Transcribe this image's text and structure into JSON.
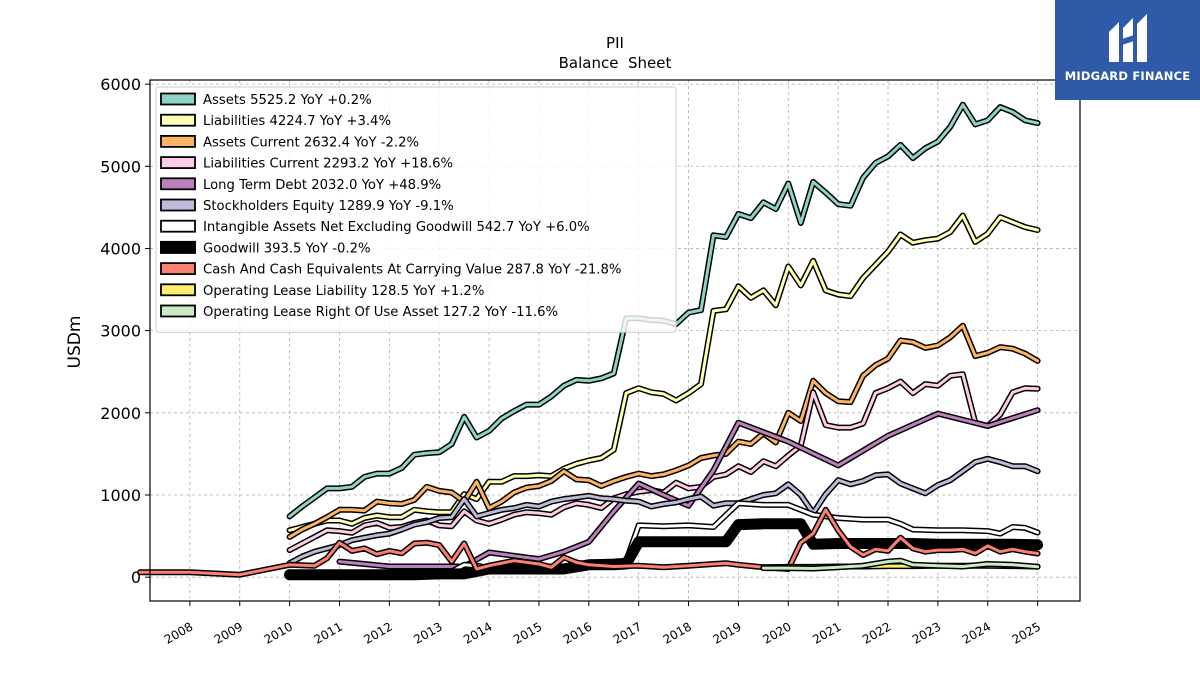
{
  "chart_data": {
    "type": "line",
    "title": "PII",
    "subtitle": "Balance  Sheet",
    "xlabel": "",
    "ylabel": "USDm",
    "xlim": [
      2007.2,
      2025.85
    ],
    "ylim": [
      -290,
      6050
    ],
    "yticks": [
      0,
      1000,
      2000,
      3000,
      4000,
      5000,
      6000
    ],
    "xticks": [
      "2008",
      "2009",
      "2010",
      "2011",
      "2012",
      "2013",
      "2014",
      "2015",
      "2016",
      "2017",
      "2018",
      "2019",
      "2020",
      "2021",
      "2022",
      "2023",
      "2024",
      "2025"
    ],
    "grid": true,
    "legend_position": "top-left",
    "series": [
      {
        "name": "Assets",
        "legend": "Assets  5525.2 YoY +0.2%",
        "color": "#8dd3c7",
        "x": [
          2010.0,
          2010.25,
          2010.5,
          2010.75,
          2011.0,
          2011.25,
          2011.5,
          2011.75,
          2012.0,
          2012.25,
          2012.5,
          2012.75,
          2013.0,
          2013.25,
          2013.5,
          2013.75,
          2014.0,
          2014.25,
          2014.5,
          2014.75,
          2015.0,
          2015.25,
          2015.5,
          2015.75,
          2016.0,
          2016.25,
          2016.5,
          2016.75,
          2017.0,
          2017.25,
          2017.5,
          2017.75,
          2018.0,
          2018.25,
          2018.5,
          2018.75,
          2019.0,
          2019.25,
          2019.5,
          2019.75,
          2020.0,
          2020.25,
          2020.5,
          2020.75,
          2021.0,
          2021.25,
          2021.5,
          2021.75,
          2022.0,
          2022.25,
          2022.5,
          2022.75,
          2023.0,
          2023.25,
          2023.5,
          2023.75,
          2024.0,
          2024.25,
          2024.5,
          2024.75,
          2025.0
        ],
        "y": [
          740,
          860,
          970,
          1080,
          1080,
          1100,
          1220,
          1260,
          1260,
          1330,
          1490,
          1510,
          1520,
          1620,
          1950,
          1700,
          1780,
          1930,
          2020,
          2100,
          2100,
          2200,
          2330,
          2400,
          2390,
          2420,
          2480,
          3150,
          3150,
          3130,
          3120,
          3080,
          3220,
          3250,
          4160,
          4140,
          4420,
          4370,
          4560,
          4480,
          4790,
          4310,
          4810,
          4680,
          4540,
          4520,
          4860,
          5040,
          5120,
          5260,
          5100,
          5220,
          5300,
          5480,
          5750,
          5510,
          5560,
          5720,
          5660,
          5560,
          5525
        ]
      },
      {
        "name": "Liabilities",
        "legend": "Liabilities  4224.7 YoY +3.4%",
        "color": "#ffffb3",
        "x": [
          2010.0,
          2010.25,
          2010.5,
          2010.75,
          2011.0,
          2011.25,
          2011.5,
          2011.75,
          2012.0,
          2012.25,
          2012.5,
          2012.75,
          2013.0,
          2013.25,
          2013.5,
          2013.75,
          2014.0,
          2014.25,
          2014.5,
          2014.75,
          2015.0,
          2015.25,
          2015.5,
          2015.75,
          2016.0,
          2016.25,
          2016.5,
          2016.75,
          2017.0,
          2017.25,
          2017.5,
          2017.75,
          2018.0,
          2018.25,
          2018.5,
          2018.75,
          2019.0,
          2019.25,
          2019.5,
          2019.75,
          2020.0,
          2020.25,
          2020.5,
          2020.75,
          2021.0,
          2021.25,
          2021.5,
          2021.75,
          2022.0,
          2022.25,
          2022.5,
          2022.75,
          2023.0,
          2023.25,
          2023.5,
          2023.75,
          2024.0,
          2024.25,
          2024.5,
          2024.75,
          2025.0
        ],
        "y": [
          570,
          610,
          650,
          690,
          690,
          650,
          720,
          750,
          730,
          730,
          820,
          800,
          790,
          790,
          1010,
          950,
          1160,
          1160,
          1230,
          1230,
          1240,
          1230,
          1320,
          1380,
          1420,
          1450,
          1550,
          2240,
          2300,
          2250,
          2230,
          2150,
          2240,
          2350,
          3240,
          3260,
          3540,
          3400,
          3490,
          3310,
          3780,
          3550,
          3850,
          3490,
          3440,
          3420,
          3640,
          3800,
          3960,
          4170,
          4070,
          4100,
          4120,
          4200,
          4400,
          4080,
          4180,
          4380,
          4320,
          4260,
          4225
        ]
      },
      {
        "name": "Assets Current",
        "legend": "Assets Current  2632.4 YoY -2.2%",
        "color": "#fdb462",
        "x": [
          2010.0,
          2010.25,
          2010.5,
          2010.75,
          2011.0,
          2011.25,
          2011.5,
          2011.75,
          2012.0,
          2012.25,
          2012.5,
          2012.75,
          2013.0,
          2013.25,
          2013.5,
          2013.75,
          2014.0,
          2014.25,
          2014.5,
          2014.75,
          2015.0,
          2015.25,
          2015.5,
          2015.75,
          2016.0,
          2016.25,
          2016.5,
          2016.75,
          2017.0,
          2017.25,
          2017.5,
          2017.75,
          2018.0,
          2018.25,
          2018.5,
          2018.75,
          2019.0,
          2019.25,
          2019.5,
          2019.75,
          2020.0,
          2020.25,
          2020.5,
          2020.75,
          2021.0,
          2021.25,
          2021.5,
          2021.75,
          2022.0,
          2022.25,
          2022.5,
          2022.75,
          2023.0,
          2023.25,
          2023.5,
          2023.75,
          2024.0,
          2024.25,
          2024.5,
          2024.75,
          2025.0
        ],
        "y": [
          490,
          580,
          650,
          730,
          820,
          820,
          810,
          920,
          900,
          890,
          940,
          1100,
          1050,
          1030,
          920,
          1160,
          840,
          920,
          1030,
          1090,
          1110,
          1170,
          1290,
          1190,
          1180,
          1110,
          1170,
          1220,
          1260,
          1230,
          1250,
          1300,
          1360,
          1450,
          1480,
          1500,
          1650,
          1620,
          1750,
          1640,
          2000,
          1900,
          2390,
          2240,
          2140,
          2130,
          2450,
          2580,
          2660,
          2880,
          2860,
          2790,
          2820,
          2920,
          3060,
          2690,
          2730,
          2800,
          2780,
          2720,
          2632
        ]
      },
      {
        "name": "Liabilities Current",
        "legend": "Liabilities Current  2293.2 YoY +18.6%",
        "color": "#fccde5",
        "x": [
          2010.0,
          2010.25,
          2010.5,
          2010.75,
          2011.0,
          2011.25,
          2011.5,
          2011.75,
          2012.0,
          2012.25,
          2012.5,
          2012.75,
          2013.0,
          2013.25,
          2013.5,
          2013.75,
          2014.0,
          2014.25,
          2014.5,
          2014.75,
          2015.0,
          2015.25,
          2015.5,
          2015.75,
          2016.0,
          2016.25,
          2016.5,
          2016.75,
          2017.0,
          2017.25,
          2017.5,
          2017.75,
          2018.0,
          2018.25,
          2018.5,
          2018.75,
          2019.0,
          2019.25,
          2019.5,
          2019.75,
          2020.0,
          2020.25,
          2020.5,
          2020.75,
          2021.0,
          2021.25,
          2021.5,
          2021.75,
          2022.0,
          2022.25,
          2022.5,
          2022.75,
          2023.0,
          2023.25,
          2023.5,
          2023.75,
          2024.0,
          2024.25,
          2024.5,
          2024.75,
          2025.0
        ],
        "y": [
          330,
          410,
          490,
          570,
          560,
          540,
          630,
          660,
          600,
          610,
          660,
          690,
          630,
          620,
          800,
          690,
          650,
          700,
          760,
          790,
          780,
          760,
          850,
          900,
          880,
          840,
          960,
          1010,
          1040,
          1060,
          1030,
          1150,
          1080,
          1100,
          1220,
          1250,
          1350,
          1280,
          1410,
          1350,
          1480,
          1600,
          2250,
          1850,
          1820,
          1820,
          1870,
          2240,
          2300,
          2380,
          2240,
          2350,
          2330,
          2450,
          2470,
          1880,
          1840,
          1980,
          2250,
          2300,
          2293
        ]
      },
      {
        "name": "Long Term Debt",
        "legend": "Long Term Debt  2032.0 YoY +48.9%",
        "color": "#bc80bd",
        "x": [
          2011.0,
          2011.5,
          2012.0,
          2012.5,
          2013.0,
          2013.5,
          2014.0,
          2014.5,
          2015.0,
          2015.5,
          2016.0,
          2016.5,
          2017.0,
          2017.5,
          2018.0,
          2018.5,
          2019.0,
          2020.0,
          2021.0,
          2022.0,
          2023.0,
          2024.0,
          2025.0
        ],
        "y": [
          190,
          160,
          130,
          130,
          130,
          130,
          300,
          260,
          220,
          310,
          430,
          800,
          1140,
          1000,
          870,
          1300,
          1880,
          1650,
          1360,
          1720,
          1990,
          1840,
          2032
        ]
      },
      {
        "name": "Stockholders Equity",
        "legend": "Stockholders Equity  1289.9 YoY -9.1%",
        "color": "#bebada",
        "x": [
          2010.0,
          2010.25,
          2010.5,
          2010.75,
          2011.0,
          2011.25,
          2011.5,
          2011.75,
          2012.0,
          2012.25,
          2012.5,
          2012.75,
          2013.0,
          2013.25,
          2013.5,
          2013.75,
          2014.0,
          2014.25,
          2014.5,
          2014.75,
          2015.0,
          2015.25,
          2015.5,
          2015.75,
          2016.0,
          2016.25,
          2016.5,
          2016.75,
          2017.0,
          2017.25,
          2017.5,
          2017.75,
          2018.0,
          2018.25,
          2018.5,
          2018.75,
          2019.0,
          2019.25,
          2019.5,
          2019.75,
          2020.0,
          2020.25,
          2020.5,
          2020.75,
          2021.0,
          2021.25,
          2021.5,
          2021.75,
          2022.0,
          2022.25,
          2022.5,
          2022.75,
          2023.0,
          2023.25,
          2023.5,
          2023.75,
          2024.0,
          2024.25,
          2024.5,
          2024.75,
          2025.0
        ],
        "y": [
          170,
          250,
          310,
          350,
          390,
          450,
          480,
          510,
          530,
          580,
          640,
          670,
          720,
          730,
          950,
          740,
          780,
          820,
          840,
          880,
          860,
          920,
          950,
          970,
          990,
          960,
          950,
          930,
          920,
          860,
          890,
          910,
          950,
          980,
          870,
          900,
          900,
          950,
          1000,
          1020,
          1130,
          1000,
          780,
          1010,
          1180,
          1130,
          1170,
          1240,
          1250,
          1140,
          1080,
          1020,
          1120,
          1180,
          1290,
          1400,
          1440,
          1400,
          1350,
          1350,
          1290
        ]
      },
      {
        "name": "Intangible Assets Net Excluding Goodwill",
        "legend": "Intangible Assets Net Excluding Goodwill  542.7 YoY +6.0%",
        "color": "#ffffff",
        "x": [
          2010.0,
          2010.5,
          2011.0,
          2011.5,
          2012.0,
          2012.5,
          2013.0,
          2013.25,
          2013.5,
          2013.75,
          2014.0,
          2014.5,
          2015.0,
          2015.5,
          2016.0,
          2016.5,
          2016.75,
          2017.0,
          2017.5,
          2018.0,
          2018.5,
          2019.0,
          2019.5,
          2020.0,
          2020.5,
          2021.0,
          2021.5,
          2022.0,
          2022.25,
          2022.5,
          2023.0,
          2023.5,
          2024.0,
          2024.25,
          2024.5,
          2024.75,
          2025.0
        ],
        "y": [
          20,
          20,
          30,
          30,
          30,
          30,
          70,
          70,
          150,
          140,
          110,
          120,
          120,
          130,
          180,
          190,
          200,
          630,
          620,
          630,
          610,
          900,
          880,
          880,
          760,
          720,
          700,
          700,
          650,
          580,
          570,
          570,
          560,
          530,
          610,
          600,
          543
        ]
      },
      {
        "name": "Goodwill",
        "legend": "Goodwill  393.5 YoY -0.2%",
        "color": "#000000",
        "x": [
          2010.0,
          2010.5,
          2011.0,
          2011.5,
          2012.0,
          2012.5,
          2013.0,
          2013.5,
          2014.0,
          2014.5,
          2015.0,
          2015.5,
          2016.0,
          2016.5,
          2016.75,
          2017.0,
          2017.5,
          2018.0,
          2018.5,
          2018.75,
          2019.0,
          2019.5,
          2020.0,
          2020.25,
          2020.5,
          2021.0,
          2021.5,
          2022.0,
          2022.5,
          2023.0,
          2023.5,
          2024.0,
          2024.5,
          2025.0
        ],
        "y": [
          30,
          30,
          30,
          30,
          30,
          30,
          40,
          40,
          100,
          100,
          100,
          100,
          150,
          150,
          160,
          430,
          430,
          430,
          430,
          430,
          640,
          650,
          650,
          650,
          400,
          410,
          410,
          410,
          410,
          400,
          400,
          400,
          400,
          394
        ]
      },
      {
        "name": "Cash And Cash Equivalents At Carrying Value",
        "legend": "Cash And Cash Equivalents At Carrying Value  287.8 YoY -21.8%",
        "color": "#fb8072",
        "x": [
          2007.0,
          2008.0,
          2009.0,
          2010.0,
          2010.5,
          2010.75,
          2011.0,
          2011.25,
          2011.5,
          2011.75,
          2012.0,
          2012.25,
          2012.5,
          2012.75,
          2013.0,
          2013.25,
          2013.5,
          2013.75,
          2014.0,
          2014.5,
          2015.0,
          2015.25,
          2015.5,
          2015.75,
          2016.0,
          2016.5,
          2017.0,
          2017.5,
          2018.0,
          2018.5,
          2018.75,
          2019.0,
          2019.5,
          2020.0,
          2020.25,
          2020.5,
          2020.75,
          2021.0,
          2021.25,
          2021.5,
          2021.75,
          2022.0,
          2022.25,
          2022.5,
          2022.75,
          2023.0,
          2023.25,
          2023.5,
          2023.75,
          2024.0,
          2024.25,
          2024.5,
          2024.75,
          2025.0
        ],
        "y": [
          60,
          60,
          30,
          150,
          140,
          230,
          420,
          320,
          350,
          280,
          320,
          290,
          410,
          420,
          390,
          190,
          410,
          100,
          140,
          200,
          160,
          120,
          240,
          180,
          150,
          130,
          140,
          120,
          140,
          160,
          170,
          150,
          120,
          100,
          420,
          530,
          820,
          570,
          370,
          270,
          340,
          320,
          480,
          350,
          310,
          330,
          330,
          340,
          290,
          380,
          310,
          340,
          310,
          288
        ]
      },
      {
        "name": "Operating Lease Liability",
        "legend": "Operating Lease Liability  128.5 YoY +1.2%",
        "color": "#ffed6f",
        "x": [
          2019.5,
          2020.0,
          2020.5,
          2021.0,
          2021.5,
          2022.0,
          2022.5,
          2023.0,
          2023.5,
          2024.0,
          2024.5,
          2025.0
        ],
        "y": [
          120,
          125,
          125,
          130,
          130,
          135,
          135,
          138,
          140,
          140,
          135,
          129
        ]
      },
      {
        "name": "Operating Lease Right Of Use Asset",
        "legend": "Operating Lease Right Of Use Asset  127.2 YoY -11.6%",
        "color": "#ccebc5",
        "x": [
          2019.5,
          2020.0,
          2020.5,
          2021.0,
          2021.5,
          2022.0,
          2022.25,
          2022.5,
          2023.0,
          2023.5,
          2024.0,
          2024.5,
          2025.0
        ],
        "y": [
          110,
          110,
          105,
          120,
          140,
          190,
          200,
          150,
          140,
          130,
          160,
          150,
          127
        ]
      }
    ]
  },
  "logo": {
    "text": "MIDGARD FINANCE"
  }
}
